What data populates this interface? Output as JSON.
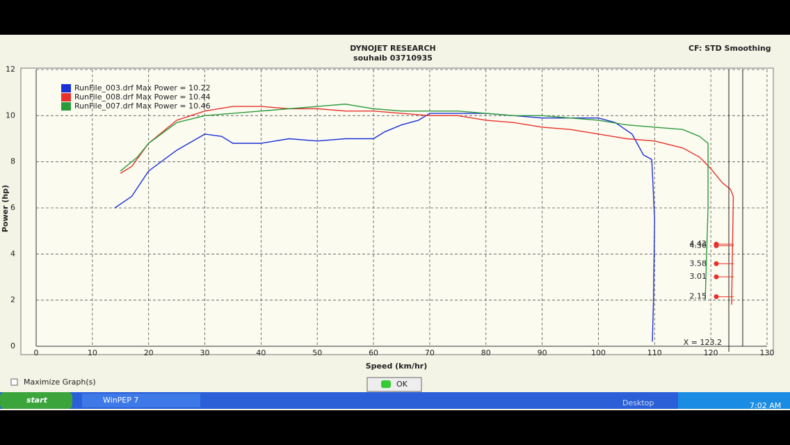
{
  "window": {
    "top_right": "CF: STD  Smoothing",
    "maximize": "Maximize Graph(s)",
    "ok": "OK"
  },
  "taskbar": {
    "start": "start",
    "app": "WinPEP 7",
    "desktop": "Desktop",
    "clock": "7:02 AM"
  },
  "chart_data": {
    "type": "line",
    "title": "DYNOJET RESEARCH",
    "subtitle": "souhaib 03710935",
    "x_label": "Speed (km/hr)",
    "y_label": "Power (hp)",
    "xlim": [
      0,
      130
    ],
    "xticks": [
      0,
      10,
      20,
      30,
      40,
      50,
      60,
      70,
      80,
      90,
      100,
      110,
      120,
      130
    ],
    "ylim": [
      0,
      12
    ],
    "yticks": [
      0,
      2,
      4,
      6,
      8,
      10,
      12
    ],
    "grid": true,
    "legend": "top-left",
    "series": [
      {
        "name": "RunFile_003.drf Max Power = 10.22",
        "color": "#1a2fd8",
        "x": [
          14,
          17,
          20,
          25,
          30,
          33,
          35,
          40,
          45,
          50,
          55,
          60,
          62,
          65,
          68,
          70,
          75,
          80,
          85,
          90,
          95,
          100,
          103,
          106,
          108,
          109.5,
          110,
          109.8,
          109.6
        ],
        "values": [
          6.0,
          6.5,
          7.6,
          8.5,
          9.2,
          9.1,
          8.8,
          8.8,
          9.0,
          8.9,
          9.0,
          9.0,
          9.3,
          9.6,
          9.8,
          10.1,
          10.1,
          10.1,
          10.0,
          9.9,
          9.9,
          9.9,
          9.7,
          9.2,
          8.3,
          8.1,
          5.5,
          2.0,
          0.2
        ]
      },
      {
        "name": "RunFile_008.drf Max Power = 10.44",
        "color": "#e8302a",
        "x": [
          15,
          17,
          20,
          25,
          30,
          35,
          40,
          45,
          50,
          55,
          60,
          65,
          70,
          75,
          80,
          85,
          90,
          95,
          100,
          105,
          110,
          115,
          118,
          120,
          122,
          123.5,
          124,
          123.9,
          123.7
        ],
        "values": [
          7.5,
          7.8,
          8.8,
          9.8,
          10.2,
          10.4,
          10.4,
          10.3,
          10.3,
          10.2,
          10.2,
          10.1,
          10.0,
          10.0,
          9.8,
          9.7,
          9.5,
          9.4,
          9.2,
          9.0,
          8.9,
          8.6,
          8.2,
          7.7,
          7.1,
          6.8,
          6.5,
          5.0,
          1.8
        ]
      },
      {
        "name": "RunFile_007.drf Max Power = 10.46",
        "color": "#2a9a3a",
        "x": [
          15,
          18,
          20,
          25,
          30,
          40,
          50,
          55,
          60,
          65,
          70,
          75,
          80,
          85,
          90,
          95,
          100,
          105,
          110,
          115,
          118,
          119.5,
          119.5,
          119
        ],
        "values": [
          7.6,
          8.2,
          8.8,
          9.7,
          10.0,
          10.2,
          10.4,
          10.5,
          10.3,
          10.2,
          10.2,
          10.2,
          10.1,
          10.0,
          10.0,
          9.9,
          9.8,
          9.6,
          9.5,
          9.4,
          9.1,
          8.8,
          6.0,
          2.0
        ]
      }
    ],
    "cursor": {
      "value": 123.2,
      "label": "X = 123.2"
    },
    "cursor_values": [
      4.43,
      4.36,
      3.58,
      3.01,
      2.15
    ]
  }
}
